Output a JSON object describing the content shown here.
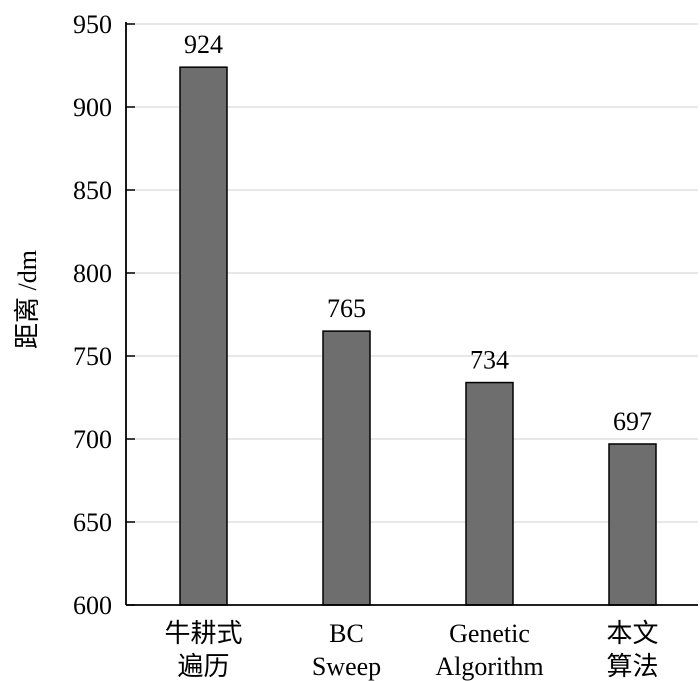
{
  "chart_data": {
    "type": "bar",
    "title": "",
    "xlabel": "",
    "ylabel": "距离 /dm",
    "ylim": [
      600,
      950
    ],
    "yticks": [
      600,
      650,
      700,
      750,
      800,
      850,
      900,
      950
    ],
    "grid": true,
    "categories": [
      [
        "牛耕式",
        "遍历"
      ],
      [
        "BC",
        "Sweep"
      ],
      [
        "Genetic",
        "Algorithm"
      ],
      [
        "本文",
        "算法"
      ]
    ],
    "values": [
      924,
      765,
      734,
      697
    ],
    "colors": {
      "bar_fill": "#6e6e6e",
      "bar_stroke": "#000000",
      "grid": "#d9d9d9",
      "axis": "#000000"
    }
  }
}
